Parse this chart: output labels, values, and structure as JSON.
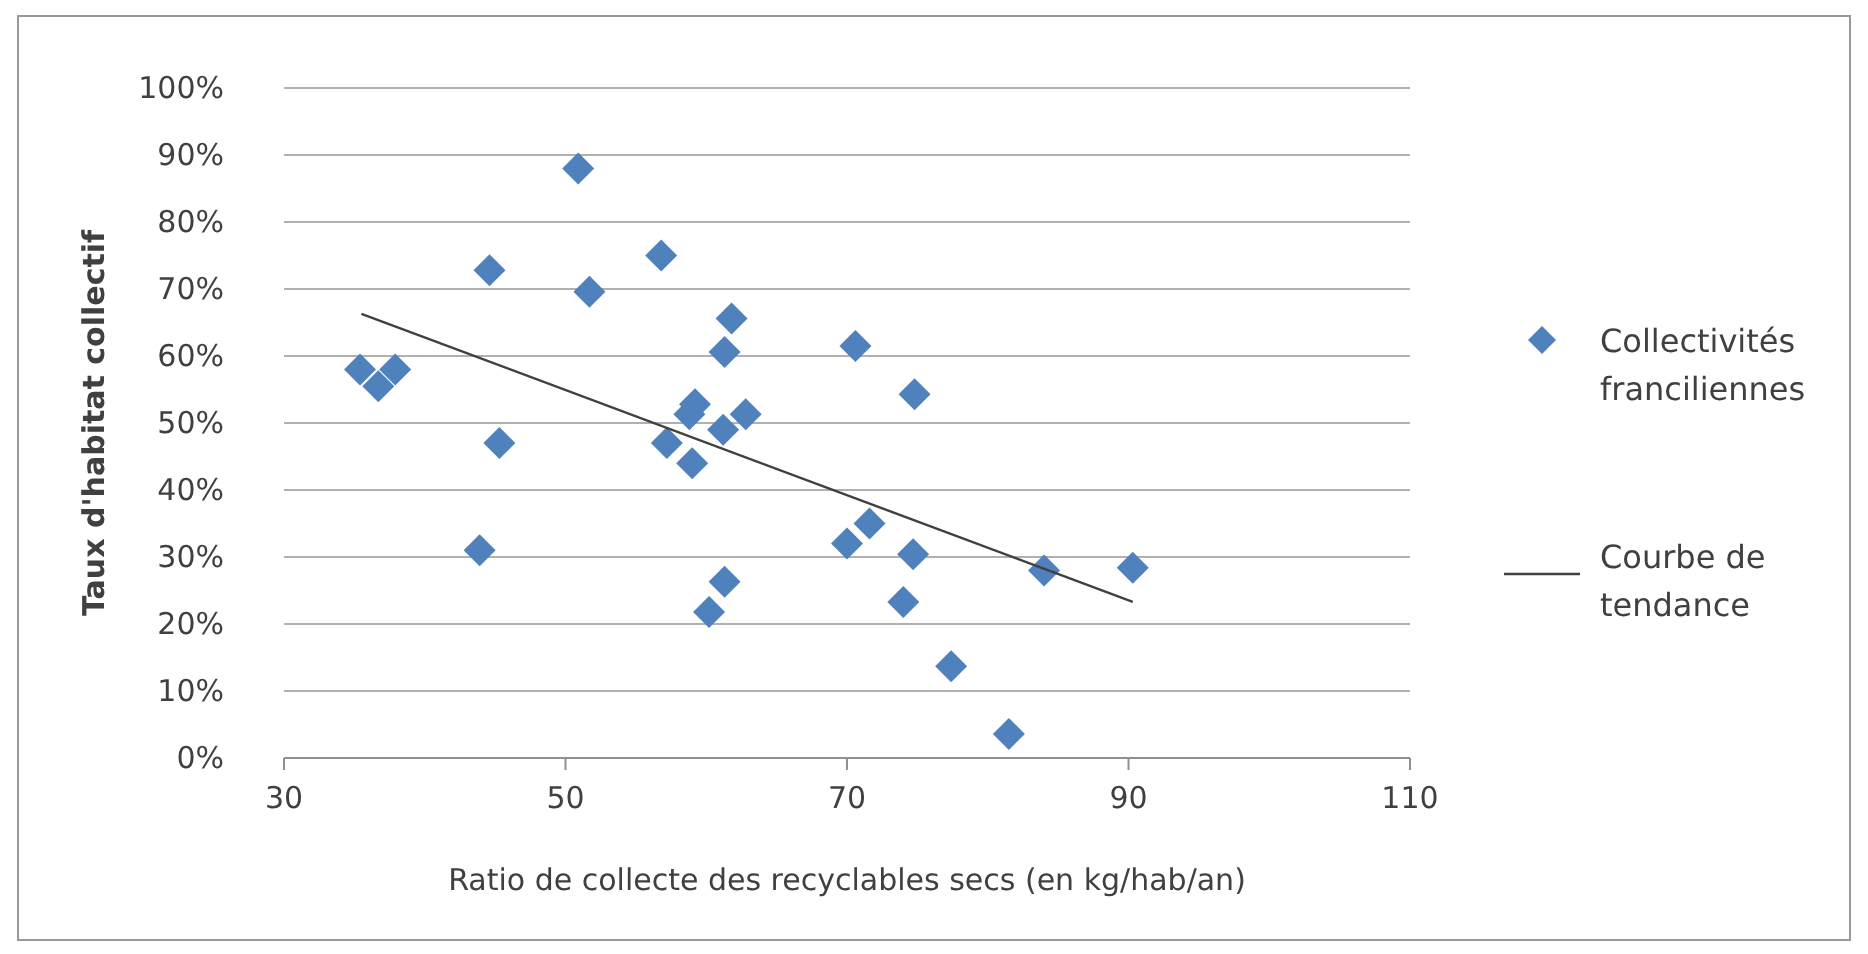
{
  "chart_data": {
    "type": "scatter",
    "xlabel": "Ratio de collecte des recyclables secs (en kg/hab/an)",
    "ylabel": "Taux d'habitat collectif",
    "xlim": [
      30,
      110
    ],
    "xticks": [
      30,
      50,
      70,
      90,
      110
    ],
    "ylim": [
      0,
      100
    ],
    "yticks": [
      {
        "value": 0,
        "label": "0%"
      },
      {
        "value": 10,
        "label": "10%"
      },
      {
        "value": 20,
        "label": "20%"
      },
      {
        "value": 30,
        "label": "30%"
      },
      {
        "value": 40,
        "label": "40%"
      },
      {
        "value": 50,
        "label": "50%"
      },
      {
        "value": 60,
        "label": "60%"
      },
      {
        "value": 70,
        "label": "70%"
      },
      {
        "value": 80,
        "label": "80%"
      },
      {
        "value": 90,
        "label": "90%"
      },
      {
        "value": 100,
        "label": "100%"
      }
    ],
    "grid": "y",
    "legend": "right",
    "series": [
      {
        "name": "Collectivités franciliennes",
        "marker": "diamond",
        "color": "#4f81bd",
        "x": [
          35.4,
          36.7,
          37.9,
          44.6,
          45.3,
          43.9,
          50.9,
          51.7,
          56.8,
          57.2,
          61.8,
          61.3,
          59.2,
          58.8,
          62.8,
          61.2,
          59,
          61.3,
          60.2,
          70.6,
          74.8,
          71.6,
          70,
          74.7,
          74,
          77.4,
          81.5,
          84,
          90.3
        ],
        "values": [
          58,
          55.5,
          58,
          72.8,
          47,
          31,
          88,
          69.6,
          75,
          47,
          65.6,
          60.6,
          52.8,
          51.3,
          51.3,
          49,
          44,
          26.3,
          21.8,
          61.5,
          54.3,
          35,
          32,
          30.4,
          23.3,
          13.7,
          3.6,
          28,
          28.4
        ]
      },
      {
        "name": "Courbe de tendance",
        "type": "line",
        "marker": "none",
        "color": "#404040",
        "x": [
          35.5,
          90.3
        ],
        "values": [
          66.3,
          23.3
        ]
      }
    ]
  }
}
